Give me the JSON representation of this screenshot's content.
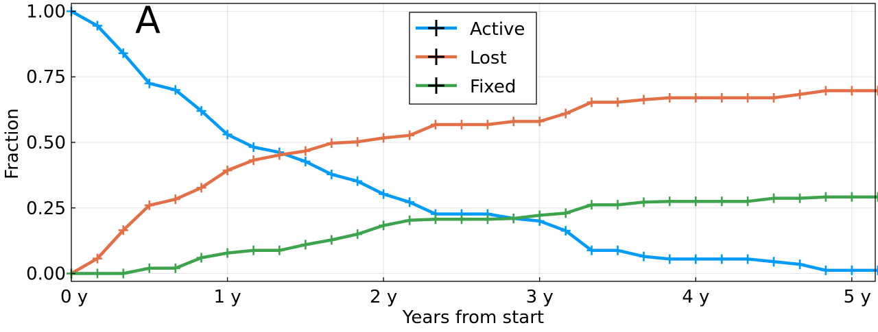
{
  "chart_data": {
    "type": "line",
    "panel_label": "A",
    "xlabel": "Years from start",
    "ylabel": "Fraction",
    "xlim": [
      0,
      5.15
    ],
    "ylim": [
      -0.03,
      1.03
    ],
    "x_ticks": [
      0,
      1,
      2,
      3,
      4,
      5
    ],
    "x_tick_labels": [
      "0 y",
      "1 y",
      "2 y",
      "3 y",
      "4 y",
      "5 y"
    ],
    "y_ticks": [
      0,
      0.25,
      0.5,
      0.75,
      1
    ],
    "y_tick_labels": [
      "0.00",
      "0.25",
      "0.50",
      "0.75",
      "1.00"
    ],
    "grid": true,
    "legend_position": "top-center",
    "marker": "+",
    "x": [
      0,
      0.167,
      0.333,
      0.5,
      0.667,
      0.833,
      1,
      1.167,
      1.333,
      1.5,
      1.667,
      1.833,
      2,
      2.167,
      2.333,
      2.5,
      2.667,
      2.833,
      3,
      3.167,
      3.333,
      3.5,
      3.667,
      3.833,
      4,
      4.167,
      4.333,
      4.5,
      4.667,
      4.833,
      5,
      5.167
    ],
    "series": [
      {
        "name": "Active",
        "color": "#009af9",
        "values": [
          1.0,
          0.945,
          0.84,
          0.725,
          0.7,
          0.62,
          0.53,
          0.482,
          0.462,
          0.427,
          0.378,
          0.352,
          0.303,
          0.272,
          0.227,
          0.227,
          0.227,
          0.21,
          0.2,
          0.163,
          0.088,
          0.088,
          0.065,
          0.055,
          0.055,
          0.055,
          0.055,
          0.045,
          0.035,
          0.012,
          0.012,
          0.012
        ]
      },
      {
        "name": "Lost",
        "color": "#e26f46",
        "values": [
          0.0,
          0.057,
          0.165,
          0.26,
          0.283,
          0.327,
          0.393,
          0.432,
          0.452,
          0.467,
          0.497,
          0.502,
          0.517,
          0.527,
          0.568,
          0.568,
          0.568,
          0.58,
          0.58,
          0.61,
          0.653,
          0.653,
          0.663,
          0.67,
          0.67,
          0.67,
          0.67,
          0.67,
          0.683,
          0.697,
          0.697,
          0.697
        ]
      },
      {
        "name": "Fixed",
        "color": "#3da44d",
        "values": [
          0.0,
          0.0,
          0.0,
          0.02,
          0.02,
          0.06,
          0.078,
          0.088,
          0.088,
          0.11,
          0.128,
          0.15,
          0.183,
          0.203,
          0.207,
          0.207,
          0.207,
          0.21,
          0.222,
          0.23,
          0.262,
          0.262,
          0.272,
          0.275,
          0.275,
          0.275,
          0.275,
          0.287,
          0.287,
          0.292,
          0.292,
          0.292
        ]
      }
    ]
  }
}
